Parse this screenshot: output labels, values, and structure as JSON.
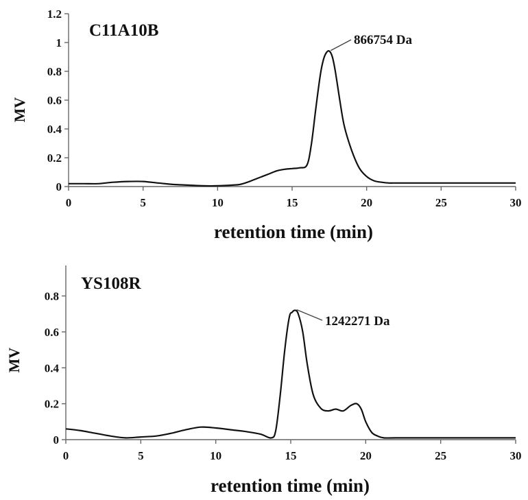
{
  "chart_data": [
    {
      "type": "line",
      "title": "C11A10B",
      "xlabel": "retention time (min)",
      "ylabel": "MV",
      "xlim": [
        0,
        30
      ],
      "ylim": [
        0,
        1.2
      ],
      "xticks": [
        "0",
        "5",
        "10",
        "15",
        "20",
        "25",
        "30"
      ],
      "yticks": [
        "0",
        "0.2",
        "0.4",
        "0.6",
        "0.8",
        "1",
        "1.2"
      ],
      "annotation": {
        "text": "866754 Da",
        "x": 17.5,
        "y": 0.94
      },
      "series": [
        {
          "x": [
            0,
            1,
            2,
            3,
            4,
            5,
            6,
            7,
            8,
            9,
            10,
            11,
            11.5,
            12,
            12.5,
            13,
            13.5,
            14,
            14.5,
            15,
            15.5,
            16,
            16.3,
            16.6,
            16.9,
            17.1,
            17.3,
            17.5,
            17.7,
            17.9,
            18.2,
            18.5,
            19,
            19.5,
            20,
            20.5,
            21,
            21.5,
            22,
            23,
            24,
            25,
            26,
            27,
            28,
            29,
            30
          ],
          "y": [
            0.02,
            0.02,
            0.02,
            0.03,
            0.035,
            0.035,
            0.025,
            0.015,
            0.01,
            0.005,
            0.005,
            0.01,
            0.015,
            0.03,
            0.05,
            0.07,
            0.09,
            0.11,
            0.12,
            0.125,
            0.13,
            0.15,
            0.3,
            0.55,
            0.78,
            0.88,
            0.93,
            0.94,
            0.9,
            0.8,
            0.6,
            0.42,
            0.25,
            0.13,
            0.07,
            0.04,
            0.03,
            0.025,
            0.025,
            0.025,
            0.025,
            0.025,
            0.025,
            0.025,
            0.025,
            0.025,
            0.025
          ]
        }
      ]
    },
    {
      "type": "line",
      "title": "YS108R",
      "xlabel": "retention time (min)",
      "ylabel": "MV",
      "xlim": [
        0,
        30
      ],
      "ylim": [
        0,
        0.97
      ],
      "xticks": [
        "0",
        "5",
        "10",
        "15",
        "20",
        "25",
        "30"
      ],
      "yticks": [
        "0",
        "0.2",
        "0.4",
        "0.6",
        "0.8"
      ],
      "annotation": {
        "text": "1242271 Da",
        "x": 15.3,
        "y": 0.72
      },
      "series": [
        {
          "x": [
            0,
            1,
            2,
            3,
            4,
            5,
            6,
            7,
            8,
            9,
            10,
            11,
            12,
            13,
            13.7,
            14,
            14.3,
            14.6,
            14.9,
            15.1,
            15.3,
            15.5,
            15.8,
            16.1,
            16.5,
            17,
            17.5,
            18,
            18.5,
            19,
            19.4,
            19.7,
            20,
            20.4,
            20.8,
            21.2,
            22,
            23,
            25,
            27,
            30
          ],
          "y": [
            0.06,
            0.05,
            0.035,
            0.02,
            0.01,
            0.015,
            0.02,
            0.035,
            0.055,
            0.07,
            0.065,
            0.055,
            0.045,
            0.03,
            0.01,
            0.05,
            0.25,
            0.5,
            0.68,
            0.71,
            0.72,
            0.7,
            0.6,
            0.42,
            0.25,
            0.175,
            0.16,
            0.17,
            0.16,
            0.19,
            0.2,
            0.17,
            0.1,
            0.04,
            0.02,
            0.01,
            0.01,
            0.01,
            0.01,
            0.01,
            0.01
          ]
        }
      ]
    }
  ]
}
